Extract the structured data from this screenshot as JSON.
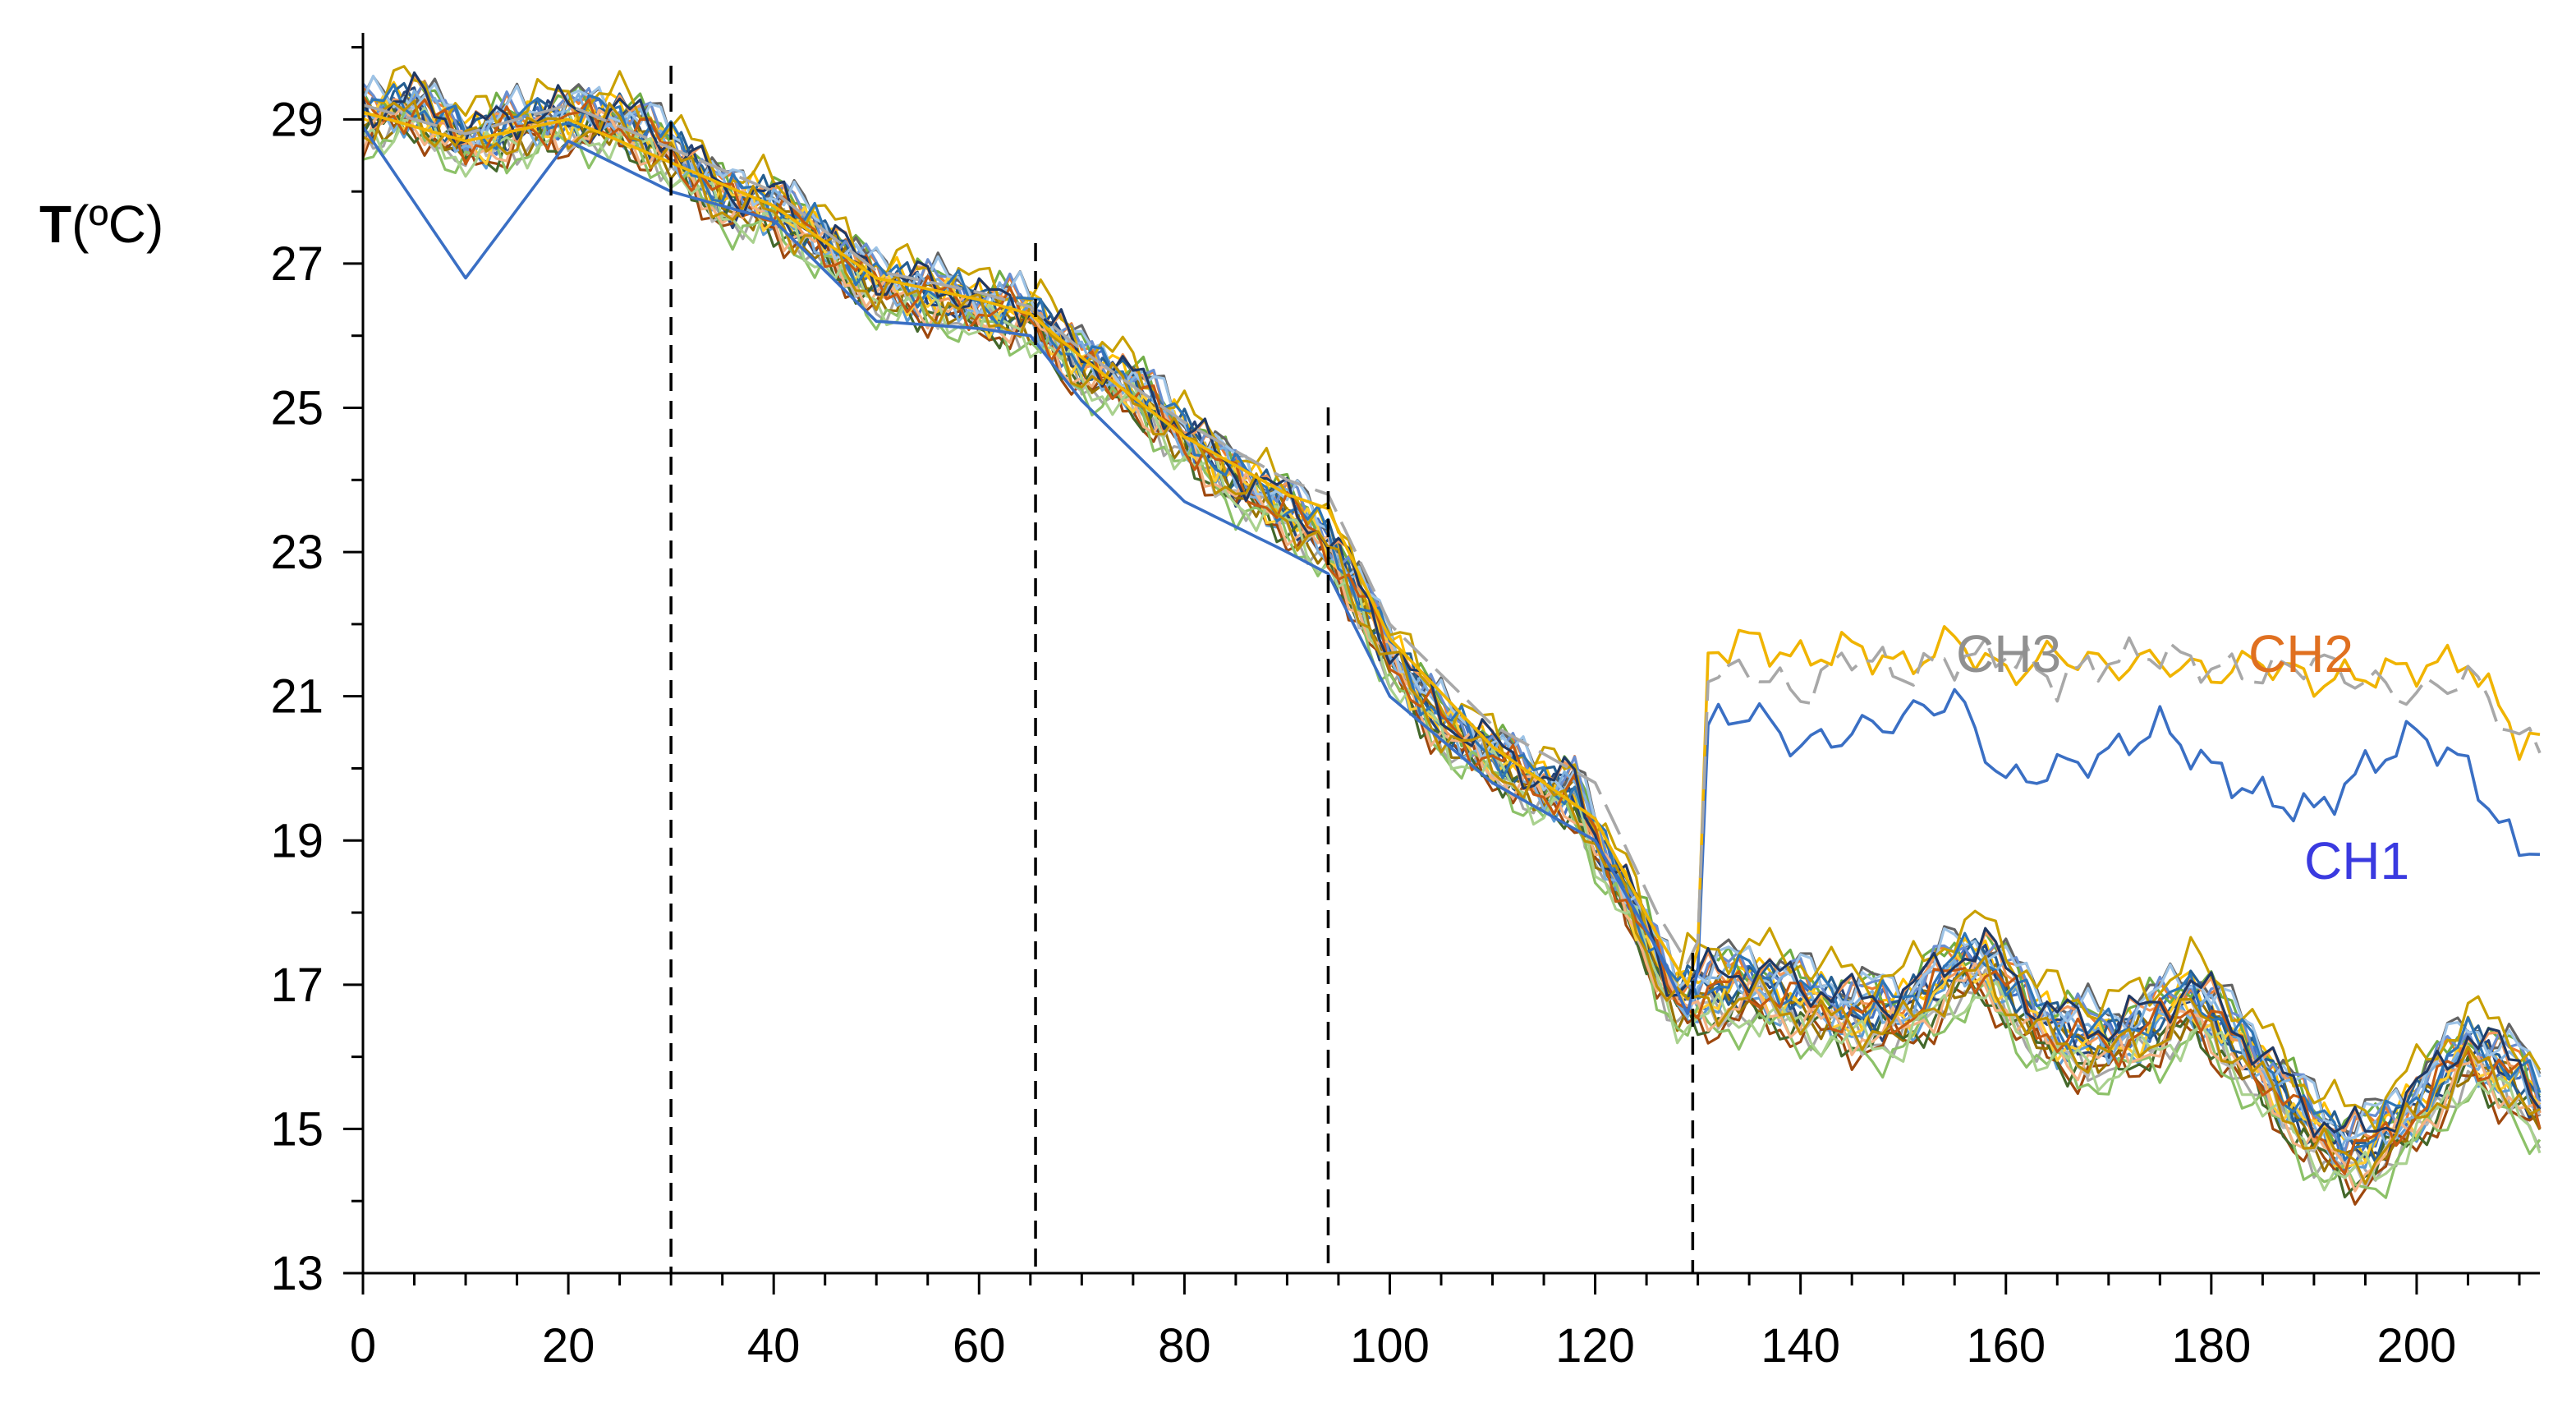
{
  "chart_data": {
    "type": "line",
    "title": "",
    "xlabel": "",
    "ylabel": {
      "bold": "T",
      "rest": "(ºC)"
    },
    "xlim": [
      0,
      212
    ],
    "ylim": [
      13,
      30.2
    ],
    "xticks": [
      0,
      20,
      40,
      60,
      80,
      100,
      120,
      140,
      160,
      180,
      200
    ],
    "yticks": [
      13,
      15,
      17,
      19,
      21,
      23,
      25,
      27,
      29
    ],
    "grid": false,
    "vlines": [
      30,
      65.5,
      94,
      129.5
    ],
    "label_colors": {
      "CH1": "#3a3ae0",
      "CH2": "#e07020",
      "CH3": "#909090"
    },
    "highlight": [
      {
        "name": "CH1",
        "color": "#3a6fc4",
        "x": [
          0,
          10,
          20,
          30,
          40,
          50,
          60,
          65,
          70,
          80,
          90,
          94,
          100,
          110,
          120,
          126,
          129,
          130,
          131,
          135,
          140,
          145,
          150,
          155,
          160,
          165,
          170,
          175,
          180,
          185,
          190,
          195,
          200,
          205,
          210,
          212
        ],
        "y": [
          28.9,
          26.8,
          28.7,
          28.0,
          27.6,
          26.2,
          26.1,
          26.0,
          25.1,
          23.7,
          23.0,
          22.7,
          21.0,
          19.8,
          19.0,
          17.5,
          16.6,
          17.2,
          20.6,
          20.8,
          20.3,
          20.5,
          20.7,
          21.0,
          19.8,
          20.0,
          20.2,
          20.6,
          20.0,
          19.6,
          19.4,
          20.0,
          20.5,
          20.0,
          18.8,
          19.0
        ]
      },
      {
        "name": "CH2",
        "color": "#f0b400",
        "x": [
          0,
          10,
          20,
          30,
          40,
          50,
          60,
          65,
          70,
          80,
          90,
          94,
          100,
          110,
          120,
          126,
          129,
          130,
          131,
          135,
          140,
          145,
          150,
          155,
          160,
          165,
          170,
          175,
          180,
          185,
          190,
          195,
          200,
          205,
          210,
          212
        ],
        "y": [
          29.1,
          28.7,
          29.0,
          28.4,
          27.8,
          26.8,
          26.5,
          26.3,
          25.7,
          24.6,
          23.8,
          23.6,
          21.8,
          20.3,
          19.3,
          17.7,
          17.0,
          17.5,
          21.6,
          21.8,
          21.5,
          21.7,
          21.4,
          21.8,
          21.3,
          21.6,
          21.4,
          21.5,
          21.3,
          21.5,
          21.2,
          21.3,
          21.4,
          21.5,
          20.4,
          20.4
        ]
      },
      {
        "name": "CH3",
        "color": "#a8a8a8",
        "x": [
          0,
          10,
          20,
          30,
          40,
          50,
          60,
          65,
          70,
          80,
          90,
          94,
          100,
          110,
          120,
          126,
          129,
          130,
          131,
          135,
          140,
          145,
          150,
          155,
          160,
          165,
          170,
          175,
          180,
          185,
          190,
          195,
          200,
          205,
          210,
          212
        ],
        "y": [
          29.2,
          28.8,
          29.2,
          28.6,
          28.0,
          26.9,
          26.6,
          26.4,
          25.8,
          24.8,
          24.0,
          23.8,
          22.0,
          20.6,
          19.8,
          18.0,
          17.3,
          17.6,
          21.2,
          21.4,
          21.0,
          21.6,
          21.3,
          21.5,
          21.6,
          21.2,
          21.5,
          21.6,
          21.4,
          21.3,
          21.5,
          21.2,
          21.0,
          21.3,
          20.4,
          20.3
        ]
      }
    ],
    "bundle": {
      "x": [
        0,
        5,
        10,
        15,
        20,
        25,
        30,
        35,
        40,
        45,
        50,
        55,
        60,
        65,
        70,
        75,
        80,
        85,
        90,
        94,
        97,
        100,
        103,
        106,
        110,
        115,
        118,
        120,
        124,
        126,
        128,
        130,
        135,
        140,
        145,
        150,
        155,
        158,
        160,
        163,
        166,
        170,
        175,
        178,
        180,
        185,
        190,
        193,
        196,
        200,
        205,
        210,
        212
      ],
      "y": [
        29.0,
        29.2,
        28.7,
        28.9,
        29.0,
        29.0,
        28.6,
        27.9,
        27.8,
        27.3,
        26.7,
        26.6,
        26.4,
        26.3,
        25.6,
        25.3,
        24.6,
        24.0,
        23.6,
        23.1,
        22.4,
        21.6,
        21.0,
        20.5,
        20.2,
        19.7,
        19.7,
        19.0,
        18.0,
        17.3,
        16.8,
        16.9,
        17.0,
        16.8,
        16.6,
        16.6,
        17.2,
        17.3,
        17.0,
        16.5,
        16.3,
        16.2,
        16.5,
        16.8,
        16.6,
        15.8,
        15.0,
        14.7,
        14.8,
        15.3,
        16.1,
        15.7,
        15.3
      ],
      "colors": [
        "#4472c4",
        "#ed7d31",
        "#a5a5a5",
        "#ffc000",
        "#5b9bd5",
        "#70ad47",
        "#264478",
        "#9e480e",
        "#636363",
        "#997300",
        "#255e91",
        "#43682b",
        "#698ed0",
        "#f1975a",
        "#b7b7b7",
        "#ffcd33",
        "#7cafdd",
        "#8cc168",
        "#f4b183",
        "#9dc3e6",
        "#a9d18e",
        "#c9a000",
        "#2e75b6",
        "#c55a11",
        "#1f3864",
        "#bf9000"
      ],
      "offsets": [
        0.0,
        0.25,
        -0.35,
        0.15,
        -0.2,
        0.35,
        -0.05,
        -0.5,
        0.45,
        -0.15,
        0.1,
        -0.4,
        0.3,
        0.2,
        -0.25,
        -0.1,
        0.05,
        -0.6,
        -0.3,
        0.4,
        -0.45,
        0.6,
        0.15,
        -0.05,
        0.25,
        -0.2
      ]
    }
  }
}
